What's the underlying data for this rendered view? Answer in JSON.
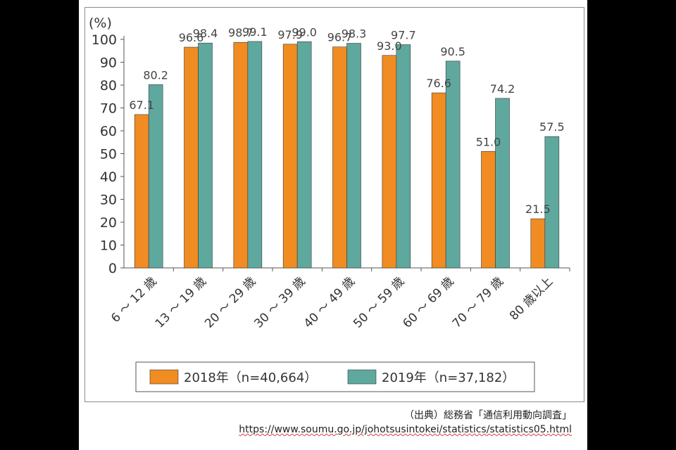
{
  "chart_data": {
    "type": "bar",
    "ylabel": "(%)",
    "ylim": [
      0,
      100
    ],
    "yticks": [
      0,
      10,
      20,
      30,
      40,
      50,
      60,
      70,
      80,
      90,
      100
    ],
    "grid": false,
    "categories": [
      "6 ～ 12 歳",
      "13 ～ 19 歳",
      "20 ～ 29 歳",
      "30 ～ 39 歳",
      "40 ～ 49 歳",
      "50 ～ 59 歳",
      "60 ～ 69 歳",
      "70 ～ 79 歳",
      "80 歳以上"
    ],
    "series": [
      {
        "name": "2018年（n=40,664）",
        "color": "#f08c22",
        "values": [
          67.1,
          96.6,
          98.7,
          97.9,
          96.7,
          93.0,
          76.6,
          51.0,
          21.5
        ]
      },
      {
        "name": "2019年（n=37,182）",
        "color": "#5ea89e",
        "values": [
          80.2,
          98.4,
          99.1,
          99.0,
          98.3,
          97.7,
          90.5,
          74.2,
          57.5
        ]
      }
    ],
    "value_labels": [
      [
        "67.1",
        "96.6",
        "98.7",
        "97.9",
        "96.7",
        "93.0",
        "76.6",
        "51.0",
        "21.5"
      ],
      [
        "80.2",
        "98.4",
        "99.1",
        "99.0",
        "98.3",
        "97.7",
        "90.5",
        "74.2",
        "57.5"
      ]
    ],
    "legend_position": "bottom"
  },
  "source": {
    "label": "（出典）総務省「通信利用動向調査」",
    "url": "https://www.soumu.go.jp/johotsusintokei/statistics/statistics05.html"
  }
}
